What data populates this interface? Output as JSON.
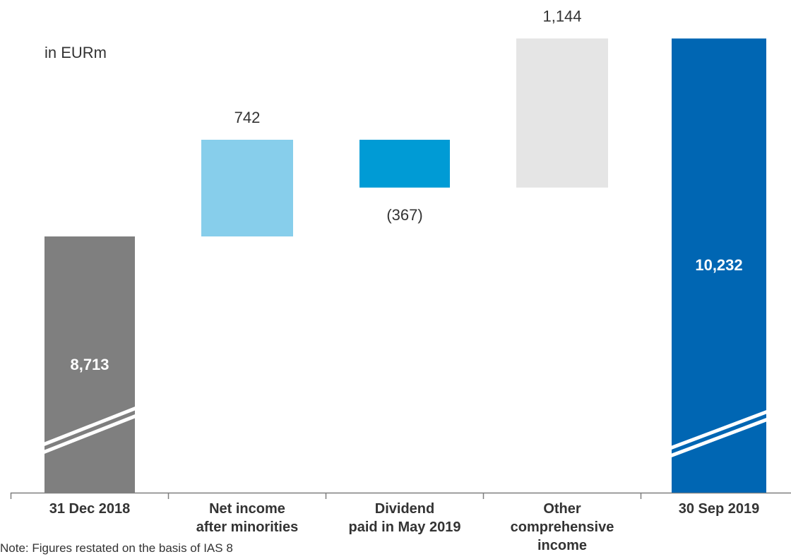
{
  "unit_label": "in EURm",
  "footnote": "Note: Figures restated on the basis of IAS 8",
  "colors": {
    "start": "#7f7f7f",
    "net_income": "#87ceeb",
    "dividend": "#009bd5",
    "oci": "#e5e5e5",
    "end": "#0066b3",
    "axis": "#7f7f7f",
    "label_dark": "#333333",
    "label_light": "#ffffff"
  },
  "chart_data": {
    "type": "bar",
    "subtype": "waterfall",
    "axis_break": true,
    "categories": [
      [
        "31 Dec 2018"
      ],
      [
        "Net income",
        "after minorities"
      ],
      [
        "Dividend",
        "paid in May 2019"
      ],
      [
        "Other",
        "comprehensive",
        "income"
      ],
      [
        "30 Sep 2019"
      ]
    ],
    "values": [
      8713,
      742,
      -367,
      1144,
      10232
    ],
    "value_labels": [
      "8,713",
      "742",
      "(367)",
      "1,144",
      "10,232"
    ],
    "measures": [
      "absolute",
      "relative",
      "relative",
      "relative",
      "total"
    ]
  }
}
